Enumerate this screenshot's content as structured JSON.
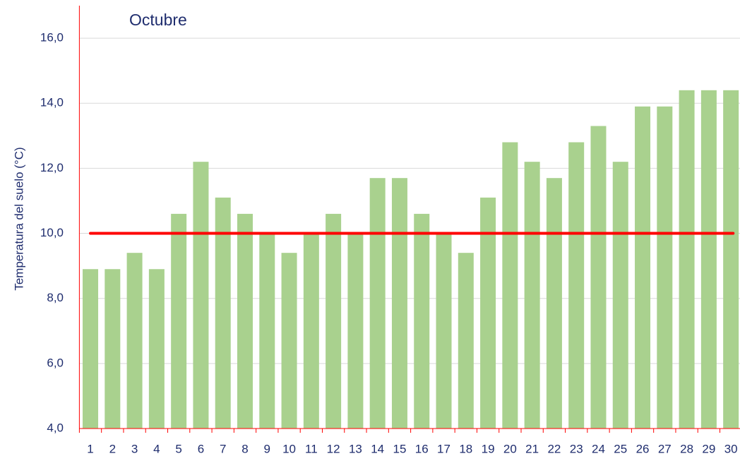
{
  "chart_data": {
    "type": "bar",
    "title": "Octubre",
    "y_label": "Temperatura del suelo (°C)",
    "categories": [
      "1",
      "2",
      "3",
      "4",
      "5",
      "6",
      "7",
      "8",
      "9",
      "10",
      "11",
      "12",
      "13",
      "14",
      "15",
      "16",
      "17",
      "18",
      "19",
      "20",
      "21",
      "22",
      "23",
      "24",
      "25",
      "26",
      "27",
      "28",
      "29",
      "30"
    ],
    "values": [
      8.9,
      8.9,
      9.4,
      8.9,
      10.6,
      12.2,
      11.1,
      10.6,
      10.0,
      9.4,
      10.0,
      10.6,
      10.0,
      11.7,
      11.7,
      10.6,
      10.0,
      9.4,
      11.1,
      12.8,
      12.2,
      11.7,
      12.8,
      13.3,
      12.2,
      13.9,
      13.9,
      14.4,
      14.4,
      14.4
    ],
    "color": "#a9d18e",
    "threshold": 10,
    "threshold_color": "#ff0000",
    "ylim": [
      4,
      17
    ],
    "yticks": [
      {
        "value": 4,
        "label": "4,0"
      },
      {
        "value": 6,
        "label": "6,0"
      },
      {
        "value": 8,
        "label": "8,0"
      },
      {
        "value": 10,
        "label": "10,0"
      },
      {
        "value": 12,
        "label": "12,0"
      },
      {
        "value": 14,
        "label": "14,0"
      },
      {
        "value": 16,
        "label": "16,0"
      }
    ],
    "grid": true
  }
}
